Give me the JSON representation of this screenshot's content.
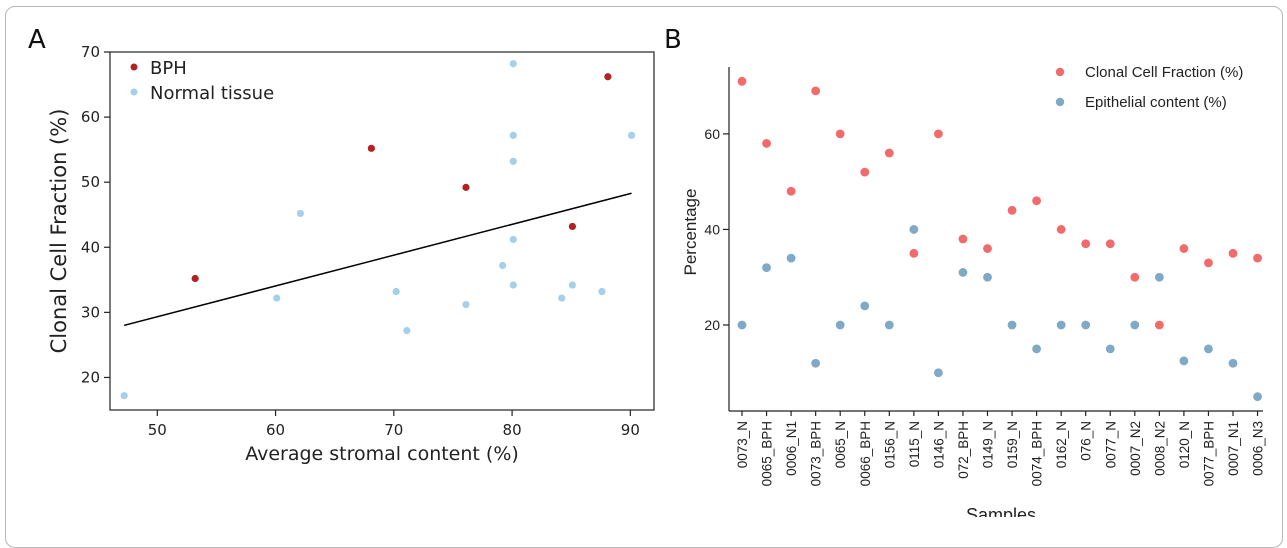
{
  "panels": {
    "a_letter": "A",
    "b_letter": "B"
  },
  "chart_data": [
    {
      "type": "scatter",
      "title": "",
      "xlabel": "Average stromal content (%)",
      "ylabel": "Clonal Cell Fraction (%)",
      "xlim": [
        46,
        92
      ],
      "ylim": [
        15,
        70
      ],
      "xticks": [
        50,
        60,
        70,
        80,
        90
      ],
      "yticks": [
        20,
        30,
        40,
        50,
        60,
        70
      ],
      "legend_position": "top-left",
      "series": [
        {
          "name": "BPH",
          "color": "#b22222",
          "points": [
            [
              53.2,
              35.2
            ],
            [
              68.1,
              55.2
            ],
            [
              76.1,
              49.2
            ],
            [
              85.1,
              43.2
            ],
            [
              88.1,
              66.2
            ]
          ]
        },
        {
          "name": "Normal tissue",
          "color": "#a6cfea",
          "points": [
            [
              47.2,
              17.2
            ],
            [
              60.1,
              32.2
            ],
            [
              62.1,
              45.2
            ],
            [
              70.2,
              33.2
            ],
            [
              71.1,
              27.2
            ],
            [
              76.1,
              31.2
            ],
            [
              79.2,
              37.2
            ],
            [
              80.1,
              68.2
            ],
            [
              80.1,
              57.2
            ],
            [
              80.1,
              53.2
            ],
            [
              80.1,
              41.2
            ],
            [
              80.1,
              34.2
            ],
            [
              84.2,
              32.2
            ],
            [
              85.1,
              34.2
            ],
            [
              87.6,
              33.2
            ],
            [
              90.1,
              57.2
            ]
          ]
        }
      ],
      "trend_line": {
        "x": [
          47.2,
          90.1
        ],
        "y": [
          28.0,
          48.3
        ],
        "color": "#000000"
      }
    },
    {
      "type": "scatter",
      "title": "",
      "xlabel": "Samples",
      "ylabel": "Percentage",
      "ylim": [
        2,
        74
      ],
      "yticks": [
        20,
        40,
        60
      ],
      "legend_position": "top-right",
      "categories": [
        "0073_N",
        "0065_BPH",
        "0006_N1",
        "0073_BPH",
        "0065_N",
        "0066_BPH",
        "0156_N",
        "0115_N",
        "0146_N",
        "072_BPH",
        "0149_N",
        "0159_N",
        "0074_BPH",
        "0162_N",
        "076_N",
        "0077_N",
        "0007_N2",
        "0008_N2",
        "0120_N",
        "0077_BPH",
        "0007_N1",
        "0006_N3"
      ],
      "series": [
        {
          "name": "Clonal Cell Fraction (%)",
          "color": "#f26b6b",
          "values": [
            71,
            58,
            48,
            69,
            60,
            52,
            56,
            35,
            60,
            38,
            36,
            44,
            46,
            40,
            37,
            37,
            30,
            20,
            36,
            33,
            35,
            34
          ]
        },
        {
          "name": "Epithelial content (%)",
          "color": "#7fa9c4",
          "values": [
            20,
            32,
            34,
            12,
            20,
            24,
            20,
            40,
            10,
            31,
            30,
            20,
            15,
            20,
            20,
            15,
            20,
            30,
            12.5,
            15,
            12,
            5
          ]
        }
      ]
    }
  ]
}
